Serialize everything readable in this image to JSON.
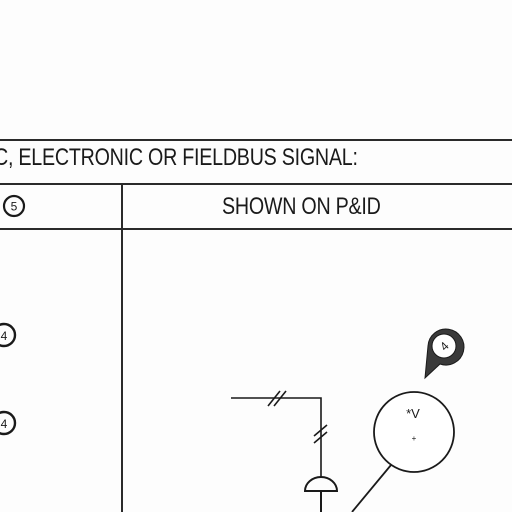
{
  "table": {
    "heading": "C, ELECTRONIC OR FIELDBUS SIGNAL:",
    "column_left_number": "5",
    "column_right_header": "SHOWN ON P&ID"
  },
  "row_markers": [
    {
      "number": "4"
    },
    {
      "number": "4"
    }
  ],
  "diagram": {
    "callout_number": "4",
    "instrument_tag": "*V",
    "instrument_mark": "+"
  }
}
